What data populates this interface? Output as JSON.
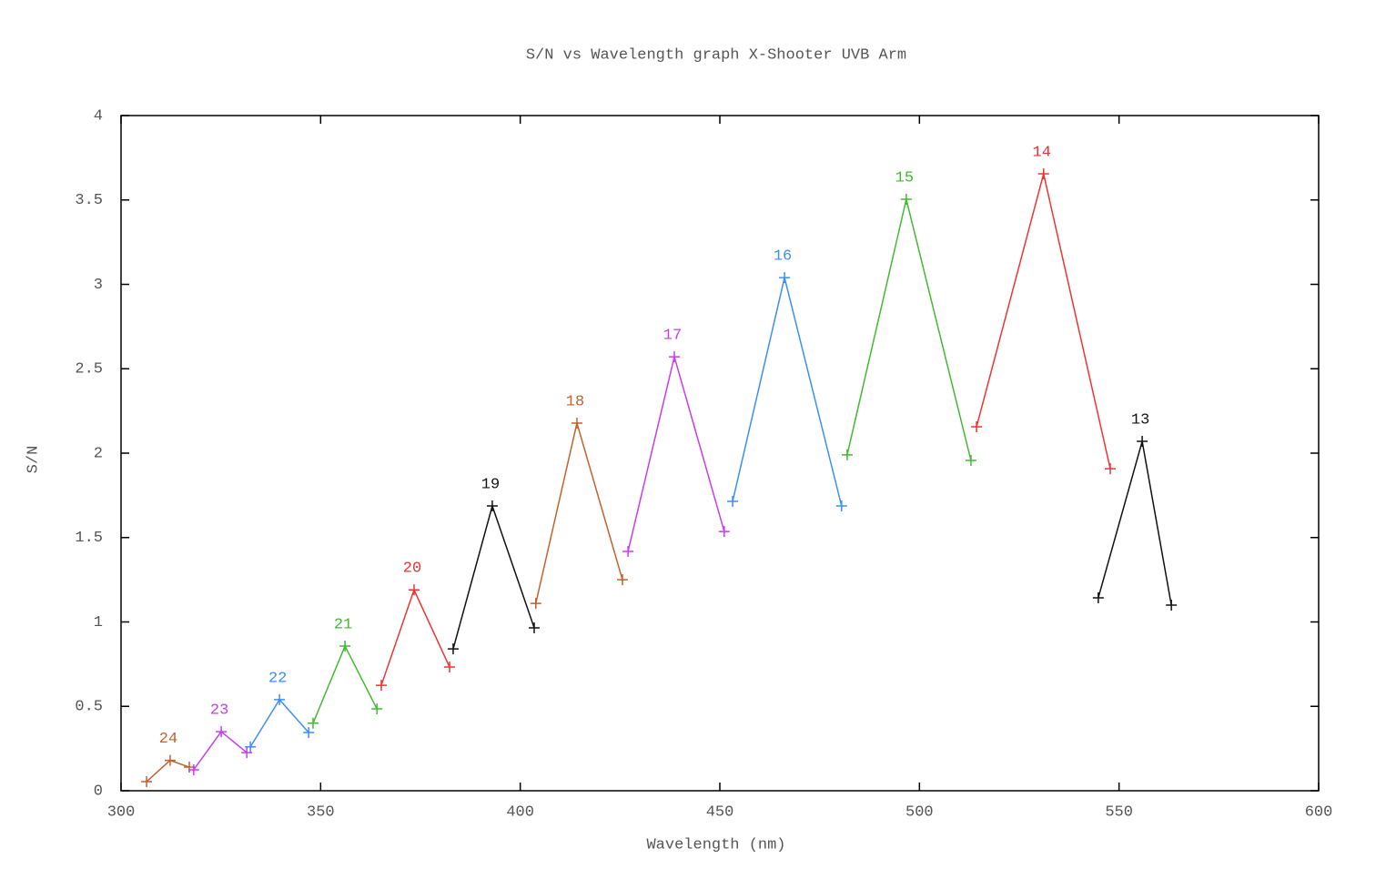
{
  "chart_data": {
    "type": "line",
    "title": "S/N vs Wavelength graph X-Shooter UVB Arm",
    "x_label": "Wavelength (nm)",
    "y_label": "S/N",
    "xlim": [
      300,
      600
    ],
    "xticks": [
      300,
      350,
      400,
      450,
      500,
      550,
      600
    ],
    "ylim": [
      0,
      4
    ],
    "yticks": [
      0,
      0.5,
      1,
      1.5,
      2,
      2.5,
      3,
      3.5,
      4
    ],
    "marker": "plus",
    "series": [
      {
        "name": "24",
        "color": "#c0622f",
        "x": [
          306.4,
          312.3,
          317.1
        ],
        "values": [
          0.054,
          0.18,
          0.14
        ]
      },
      {
        "name": "23",
        "color": "#c83cf0",
        "x": [
          318.2,
          325.1,
          331.5
        ],
        "values": [
          0.124,
          0.35,
          0.226
        ]
      },
      {
        "name": "22",
        "color": "#3d8ef0",
        "x": [
          332.4,
          339.7,
          347.0
        ],
        "values": [
          0.26,
          0.54,
          0.345
        ]
      },
      {
        "name": "21",
        "color": "#44b833",
        "x": [
          348.1,
          356.1,
          364.1
        ],
        "values": [
          0.4,
          0.857,
          0.485
        ]
      },
      {
        "name": "20",
        "color": "#ee3333",
        "x": [
          365.2,
          373.4,
          382.3
        ],
        "values": [
          0.625,
          1.19,
          0.733
        ]
      },
      {
        "name": "19",
        "color": "#111111",
        "x": [
          383.2,
          393.0,
          403.5
        ],
        "values": [
          0.84,
          1.687,
          0.965
        ]
      },
      {
        "name": "18",
        "color": "#c0622f",
        "x": [
          403.9,
          414.2,
          425.6
        ],
        "values": [
          1.11,
          2.178,
          1.25
        ]
      },
      {
        "name": "17",
        "color": "#c83cf0",
        "x": [
          427.0,
          438.6,
          451.1
        ],
        "values": [
          1.418,
          2.571,
          1.536
        ]
      },
      {
        "name": "16",
        "color": "#3d8ef0",
        "x": [
          453.2,
          466.2,
          480.5
        ],
        "values": [
          1.714,
          3.04,
          1.687
        ]
      },
      {
        "name": "15",
        "color": "#44b833",
        "x": [
          481.9,
          496.7,
          512.9
        ],
        "values": [
          1.99,
          3.504,
          1.957
        ]
      },
      {
        "name": "14",
        "color": "#ee3333",
        "x": [
          514.3,
          531.1,
          547.8
        ],
        "values": [
          2.156,
          3.655,
          1.908
        ]
      },
      {
        "name": "13",
        "color": "#111111",
        "x": [
          544.8,
          555.8,
          563.1
        ],
        "values": [
          1.143,
          2.07,
          1.1
        ]
      }
    ]
  }
}
